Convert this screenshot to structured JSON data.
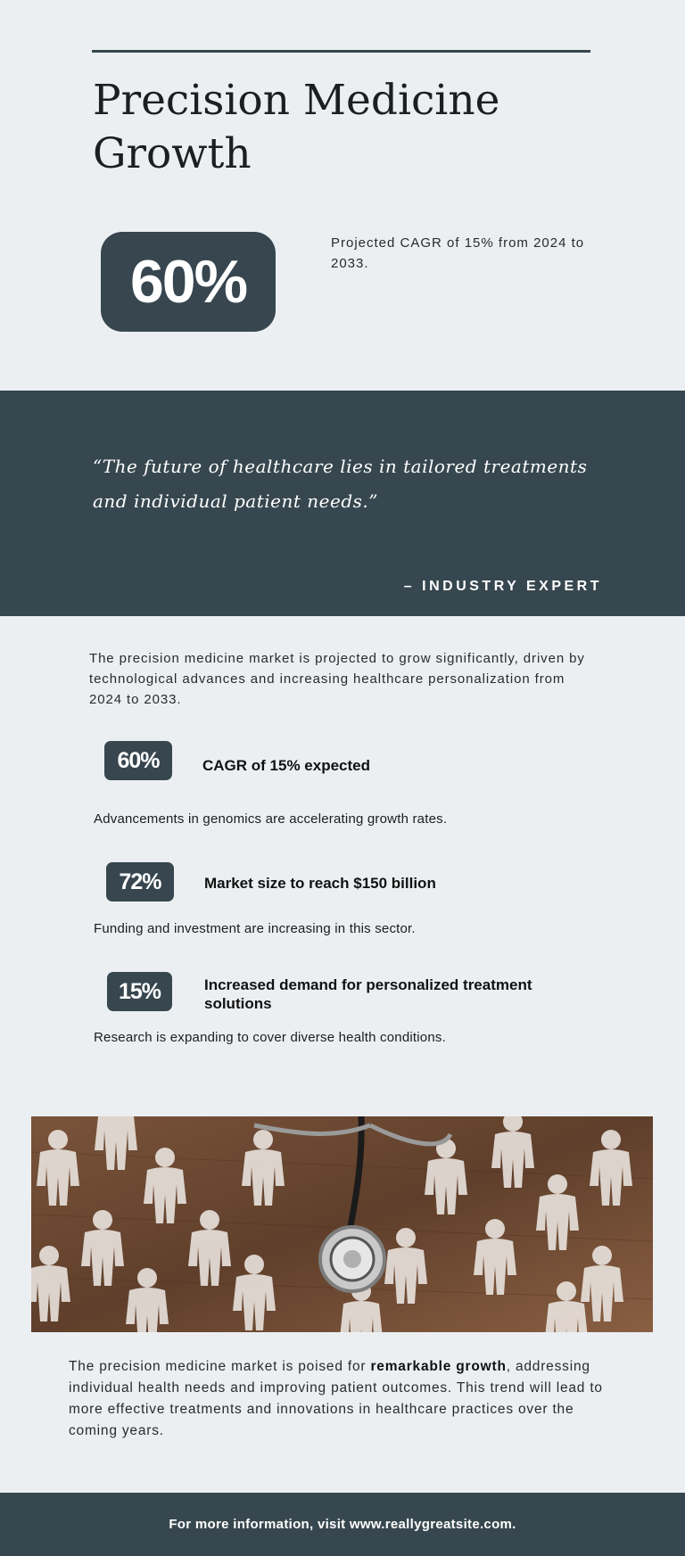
{
  "header": {
    "title": "Precision Medicine Growth"
  },
  "hero": {
    "value": "60%",
    "description": "Projected CAGR of 15% from 2024 to 2033."
  },
  "quote": {
    "text": "“The future of healthcare lies in tailored treatments and individual patient needs.”",
    "attribution": "– INDUSTRY EXPERT"
  },
  "intro": {
    "text": "The precision medicine market is projected to grow significantly, driven by technological advances and increasing healthcare personalization from 2024 to 2033."
  },
  "stats": [
    {
      "value": "60%",
      "label": "CAGR of 15% expected",
      "description": "Advancements in genomics are accelerating growth rates."
    },
    {
      "value": "72%",
      "label": "Market size to reach $150 billion",
      "description": "Funding and investment are increasing in this sector."
    },
    {
      "value": "15%",
      "label": "Increased demand for personalized treatment solutions",
      "description": "Research is expanding to cover diverse health conditions."
    }
  ],
  "closing": {
    "before": "The precision medicine market is poised for ",
    "emphasis": "remarkable growth",
    "after": ", addressing individual health needs and improving patient outcomes. This trend will lead to more effective treatments and innovations in healthcare practices over the coming years."
  },
  "footer": {
    "text": "For more information, visit www.reallygreatsite.com."
  },
  "colors": {
    "accent": "#37464f",
    "background": "#eceff2",
    "wood": "#6e4a33"
  },
  "image": {
    "icon": "stethoscope-people-photo"
  }
}
